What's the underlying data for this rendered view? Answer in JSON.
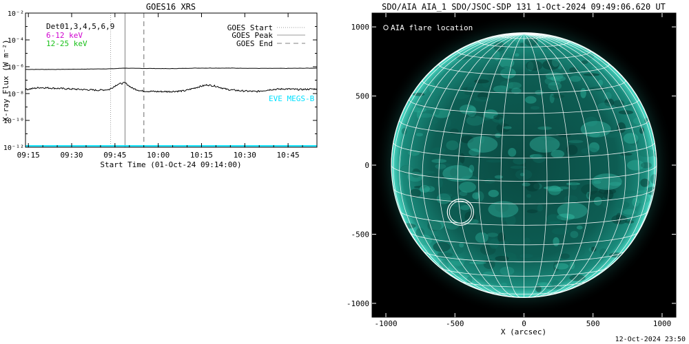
{
  "footer_timestamp": "12-Oct-2024 23:50",
  "chart_data": [
    {
      "type": "line",
      "title": "GOES16 XRS",
      "xlabel": "Start Time (01-Oct-24 09:14:00)",
      "ylabel": "X-ray Flux (W m⁻²)",
      "y_scale": "log",
      "ylim_exponents": [
        -12,
        -2
      ],
      "y_ticks": [
        {
          "exp": -2,
          "label": "10⁻²"
        },
        {
          "exp": -4,
          "label": "10⁻⁴"
        },
        {
          "exp": -6,
          "label": "10⁻⁶"
        },
        {
          "exp": -8,
          "label": "10⁻⁸"
        },
        {
          "exp": -10,
          "label": "10⁻¹⁰"
        },
        {
          "exp": -12,
          "label": "10⁻¹²"
        }
      ],
      "x_range_minutes": [
        0,
        101
      ],
      "x_ticks": [
        {
          "min": 1,
          "label": "09:15"
        },
        {
          "min": 16,
          "label": "09:30"
        },
        {
          "min": 31,
          "label": "09:45"
        },
        {
          "min": 46,
          "label": "10:00"
        },
        {
          "min": 61,
          "label": "10:15"
        },
        {
          "min": 76,
          "label": "10:30"
        },
        {
          "min": 91,
          "label": "10:45"
        }
      ],
      "legend_left": [
        {
          "text": "Det01,3,4,5,6,9",
          "color": "#000000"
        },
        {
          "text": "6-12 keV",
          "color": "#d000d0"
        },
        {
          "text": "12-25 keV",
          "color": "#18c018"
        }
      ],
      "legend_right": [
        {
          "text": "GOES Start",
          "style": "dotted"
        },
        {
          "text": "GOES Peak",
          "style": "solid"
        },
        {
          "text": "GOES End",
          "style": "dashed"
        }
      ],
      "eve_label": "EVE MEGS-B",
      "markers_minutes": {
        "start": 29.5,
        "peak": 34.5,
        "end": 41.0
      },
      "series": [
        {
          "name": "long",
          "color": "#000000",
          "x": [
            0,
            10,
            20,
            30,
            34,
            38,
            50,
            60,
            70,
            80,
            90,
            101
          ],
          "y_exp": [
            -6.2,
            -6.2,
            -6.18,
            -6.15,
            -6.1,
            -6.12,
            -6.14,
            -6.1,
            -6.1,
            -6.12,
            -6.12,
            -6.1
          ]
        },
        {
          "name": "short",
          "color": "#000000",
          "x": [
            0,
            5,
            10,
            15,
            20,
            25,
            29,
            32,
            34.5,
            37,
            40,
            45,
            50,
            55,
            60,
            63,
            66,
            70,
            75,
            80,
            85,
            90,
            95,
            101
          ],
          "y_exp": [
            -7.7,
            -7.55,
            -7.6,
            -7.65,
            -7.7,
            -7.75,
            -7.7,
            -7.3,
            -7.2,
            -7.6,
            -7.8,
            -7.85,
            -7.85,
            -7.8,
            -7.5,
            -7.35,
            -7.45,
            -7.7,
            -7.8,
            -7.85,
            -7.7,
            -7.65,
            -7.7,
            -7.65
          ]
        },
        {
          "name": "EVE MEGS-B",
          "color": "#00e0ff",
          "x": [
            0,
            101
          ],
          "y_exp": [
            -11.9,
            -11.9
          ]
        }
      ]
    },
    {
      "type": "heatmap",
      "title": "SDO/AIA AIA_1 SDO/JSOC-SDP 131  1-Oct-2024 09:49:06.620 UT",
      "xlabel": "X (arcsec)",
      "ylabel": "",
      "xlim": [
        -1100,
        1100
      ],
      "ylim": [
        -1100,
        1100
      ],
      "x_ticks": [
        -1000,
        -500,
        0,
        500,
        1000
      ],
      "y_ticks": [
        -1000,
        -500,
        0,
        500,
        1000
      ],
      "legend_text": "AIA flare location",
      "flare_location": {
        "x": -460,
        "y": -340,
        "radius": 95
      },
      "solar_radius_arcsec": 960,
      "grid_step_deg": 10,
      "disk_color": "#0b5a50",
      "limb_glow_color": "#3ed6c0",
      "grid_color": "#ffffff"
    }
  ]
}
